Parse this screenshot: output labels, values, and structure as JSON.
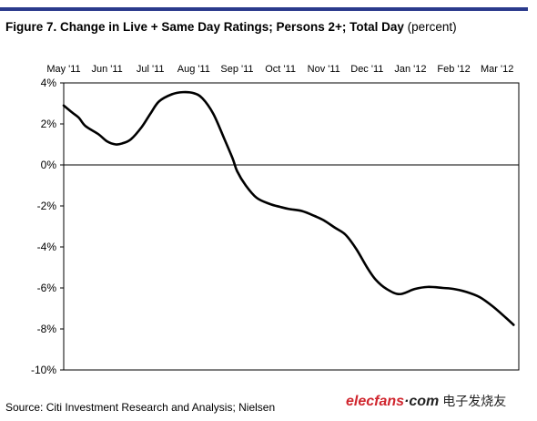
{
  "figure": {
    "title_bold": "Figure 7. Change in Live + Same Day Ratings; Persons 2+; Total Day",
    "title_suffix": "(percent)",
    "source": "Source: Citi Investment Research and Analysis; Nielsen"
  },
  "watermark": {
    "part1": "elecfans",
    "part2": "·com",
    "part3": "电子发烧友"
  },
  "colors": {
    "accent": "#2a3a8c",
    "line": "#000000",
    "watermark_red": "#d0262e"
  },
  "chart_data": {
    "type": "line",
    "title": "Figure 7. Change in Live + Same Day Ratings; Persons 2+; Total Day (percent)",
    "xlabel": "",
    "ylabel": "",
    "x_ticks": [
      "May '11",
      "Jun '11",
      "Jul '11",
      "Aug '11",
      "Sep '11",
      "Oct '11",
      "Nov '11",
      "Dec '11",
      "Jan '12",
      "Feb '12",
      "Mar '12"
    ],
    "x_range": [
      0,
      10.5
    ],
    "y_ticks": [
      "4%",
      "2%",
      "0%",
      "-2%",
      "-4%",
      "-6%",
      "-8%",
      "-10%"
    ],
    "y_tick_values": [
      4,
      2,
      0,
      -2,
      -4,
      -6,
      -8,
      -10
    ],
    "ylim": [
      -10,
      4
    ],
    "grid": false,
    "legend": "none",
    "series": [
      {
        "x": [
          0,
          0.2,
          0.35,
          0.5,
          0.8,
          1.0,
          1.2,
          1.35,
          1.55,
          1.8,
          2.0,
          2.2,
          2.5,
          2.75,
          3.0,
          3.2,
          3.45,
          3.7,
          3.9,
          4.0,
          4.2,
          4.45,
          4.75,
          5.0,
          5.2,
          5.5,
          5.8,
          6.0,
          6.25,
          6.5,
          6.75,
          7.0,
          7.2,
          7.45,
          7.75,
          8.1,
          8.4,
          8.75,
          9.0,
          9.3,
          9.6,
          9.9,
          10.2,
          10.38
        ],
        "y": [
          2.9,
          2.55,
          2.3,
          1.9,
          1.5,
          1.15,
          1.0,
          1.05,
          1.25,
          1.85,
          2.5,
          3.1,
          3.45,
          3.55,
          3.5,
          3.25,
          2.5,
          1.3,
          0.3,
          -0.3,
          -1.0,
          -1.6,
          -1.9,
          -2.05,
          -2.15,
          -2.25,
          -2.5,
          -2.7,
          -3.05,
          -3.4,
          -4.1,
          -5.0,
          -5.6,
          -6.05,
          -6.3,
          -6.05,
          -5.95,
          -6.0,
          -6.05,
          -6.2,
          -6.45,
          -6.9,
          -7.45,
          -7.8
        ]
      }
    ]
  }
}
